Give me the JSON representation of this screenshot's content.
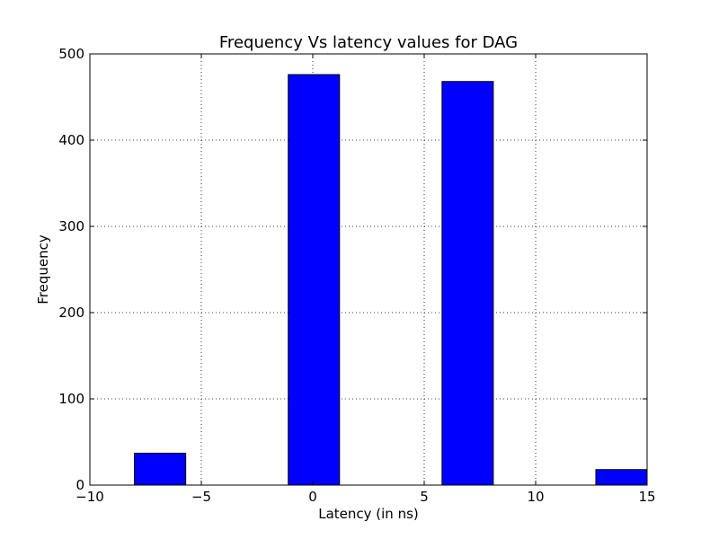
{
  "chart_data": {
    "type": "bar",
    "title": "Frequency Vs latency values for DAG",
    "xlabel": "Latency (in ns)",
    "ylabel": "Frequency",
    "xlim": [
      -10,
      15
    ],
    "ylim": [
      0,
      500
    ],
    "xticks": [
      -10,
      -5,
      0,
      5,
      10,
      15
    ],
    "xtick_labels": [
      "−10",
      "−5",
      "0",
      "5",
      "10",
      "15"
    ],
    "yticks": [
      0,
      100,
      200,
      300,
      400,
      500
    ],
    "ytick_labels": [
      "0",
      "100",
      "200",
      "300",
      "400",
      "500"
    ],
    "grid": true,
    "bar_color": "#0000ff",
    "bars": [
      {
        "x_start": -8.0,
        "x_end": -5.7,
        "value": 37
      },
      {
        "x_start": -1.1,
        "x_end": 1.2,
        "value": 476
      },
      {
        "x_start": 5.8,
        "x_end": 8.1,
        "value": 468
      },
      {
        "x_start": 12.7,
        "x_end": 15.0,
        "value": 18
      }
    ]
  }
}
